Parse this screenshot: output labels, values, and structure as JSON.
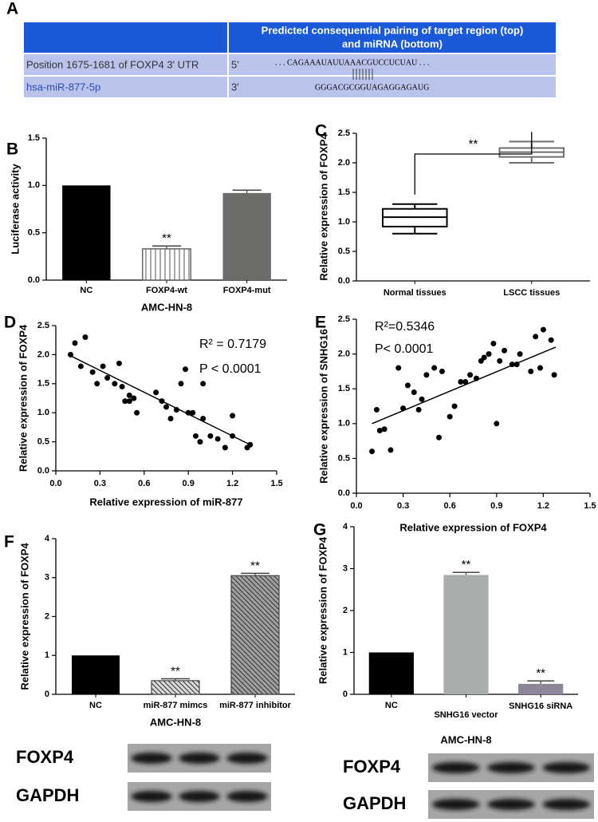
{
  "panel_a": {
    "panel": "A",
    "header": [
      "Predicted consequential pairing of target region (top)",
      "and miRNA (bottom)"
    ],
    "rows": [
      [
        "Position 1675-1681 of FOXP4 3' UTR",
        "5'",
        ". . . CAGAAAUAUUAAACGUCCUCUAU . . ."
      ],
      [
        "hsa-miR-877-5p",
        "3'",
        "GGGACGCGGUAGAGGAGAUG"
      ]
    ]
  },
  "chart_data": [
    {
      "type": "bar",
      "panel": "B",
      "categories": [
        "NC",
        "FOXP4-wt",
        "FOXP4-mut"
      ],
      "values": [
        1.0,
        0.33,
        0.92
      ],
      "errors": [
        null,
        0.03,
        0.03
      ],
      "colors": [
        "#000000",
        "#ffffff",
        "#6b6d68"
      ],
      "hatch": [
        null,
        "vertical",
        null
      ],
      "significance": [
        null,
        "**",
        null
      ],
      "ylabel": "Luciferase activity",
      "xlabel": "AMC-HN-8",
      "ylim": [
        0,
        1.5
      ],
      "yticks": [
        {
          "value": 0,
          "label": "0.0"
        },
        0.5,
        {
          "value": 1,
          "label": "1.0"
        },
        1.5
      ]
    },
    {
      "type": "box",
      "panel": "C",
      "categories": [
        "Normal tissues",
        "LSCC tissues"
      ],
      "min": [
        0.8,
        2.0
      ],
      "q1": [
        0.92,
        2.1
      ],
      "median": [
        1.08,
        2.18
      ],
      "q3": [
        1.22,
        2.25
      ],
      "max": [
        1.3,
        2.36
      ],
      "colors": [
        "#000000",
        "#6e6e6e"
      ],
      "significance": "**",
      "ylabel": "Relative expression of FOXP4",
      "ylim": [
        0,
        2.5
      ],
      "yticks": [
        {
          "value": 0,
          "label": "0.0"
        },
        0.5,
        {
          "value": 1,
          "label": "1.0"
        },
        1.5,
        {
          "value": 2,
          "label": "2.0"
        },
        2.5
      ]
    },
    {
      "type": "scatter",
      "panel": "D",
      "x": [
        0.1,
        0.13,
        0.2,
        0.17,
        0.25,
        0.28,
        0.32,
        0.35,
        0.4,
        0.43,
        0.45,
        0.47,
        0.5,
        0.5,
        0.55,
        0.53,
        0.68,
        0.72,
        0.75,
        0.78,
        0.82,
        0.85,
        0.88,
        0.9,
        0.93,
        0.95,
        0.98,
        1.0,
        1.0,
        1.05,
        1.1,
        1.15,
        1.2,
        1.2,
        1.3,
        1.32
      ],
      "values": [
        2.0,
        2.2,
        2.3,
        1.8,
        1.7,
        1.5,
        1.8,
        1.6,
        1.5,
        1.85,
        1.45,
        1.2,
        1.3,
        1.2,
        1.0,
        1.25,
        1.35,
        1.2,
        1.1,
        0.9,
        1.05,
        1.5,
        1.75,
        1.0,
        1.0,
        0.6,
        0.5,
        1.5,
        0.9,
        0.6,
        0.55,
        0.4,
        0.95,
        0.6,
        0.4,
        0.45
      ],
      "fit": {
        "x": [
          0.1,
          1.32
        ],
        "values": [
          1.98,
          0.45
        ]
      },
      "annotations": [
        "R² = 0.7179",
        "P < 0.0001"
      ],
      "xlabel": "Relative expression of miR-877",
      "ylabel": "Relative expression of FOXP4",
      "xlim": [
        0,
        1.5
      ],
      "ylim": [
        0,
        2.5
      ],
      "xticks": [
        {
          "value": 0,
          "label": "0.0"
        },
        0.3,
        0.6,
        0.9,
        1.2,
        1.5
      ],
      "yticks": [
        {
          "value": 0,
          "label": "0.0"
        },
        0.5,
        {
          "value": 1,
          "label": "1.0"
        },
        1.5,
        {
          "value": 2,
          "label": "2.0"
        },
        2.5
      ]
    },
    {
      "type": "scatter",
      "panel": "E",
      "x": [
        0.1,
        0.13,
        0.15,
        0.18,
        0.22,
        0.27,
        0.3,
        0.33,
        0.37,
        0.4,
        0.42,
        0.45,
        0.5,
        0.53,
        0.55,
        0.6,
        0.63,
        0.67,
        0.7,
        0.73,
        0.77,
        0.8,
        0.82,
        0.85,
        0.88,
        0.9,
        0.92,
        0.95,
        1.0,
        1.03,
        1.05,
        1.12,
        1.15,
        1.18,
        1.2,
        1.25,
        1.27
      ],
      "values": [
        0.6,
        1.2,
        0.9,
        0.92,
        0.62,
        1.8,
        1.22,
        1.55,
        1.45,
        1.2,
        1.35,
        1.7,
        1.8,
        0.8,
        1.75,
        1.1,
        1.25,
        1.6,
        1.6,
        1.7,
        1.65,
        1.9,
        1.95,
        2.0,
        2.15,
        1.0,
        1.9,
        2.05,
        1.85,
        1.85,
        2.0,
        1.75,
        2.25,
        1.8,
        2.35,
        2.2,
        1.7
      ],
      "fit": {
        "x": [
          0.1,
          1.28
        ],
        "values": [
          1.0,
          2.1
        ]
      },
      "annotations": [
        "R²=0.5346",
        "P< 0.0001"
      ],
      "xlabel": "Relative expression of FOXP4",
      "ylabel": "Relative expression of SNHG16",
      "xlim": [
        0,
        1.5
      ],
      "ylim": [
        0,
        2.5
      ],
      "xticks": [
        {
          "value": 0,
          "label": "0.0"
        },
        0.3,
        0.6,
        0.9,
        1.2,
        1.5
      ],
      "yticks": [
        {
          "value": 0,
          "label": "0.0"
        },
        0.5,
        {
          "value": 1,
          "label": "1.0"
        },
        1.5,
        {
          "value": 2,
          "label": "2.0"
        },
        2.5
      ]
    },
    {
      "type": "bar",
      "panel": "F",
      "categories": [
        "NC",
        "miR-877 mimcs",
        "miR-877 inhibitor"
      ],
      "values": [
        1.0,
        0.35,
        3.05
      ],
      "errors": [
        null,
        0.05,
        0.06
      ],
      "colors": [
        "#000000",
        "#d9d9d9",
        "#a0a0a0"
      ],
      "hatch": [
        null,
        "diagonal",
        "diagonal"
      ],
      "significance": [
        null,
        "**",
        "**"
      ],
      "ylabel": "Relative expression of FOXP4",
      "xlabel": "AMC-HN-8",
      "ylim": [
        0,
        4
      ],
      "yticks": [
        0,
        1,
        2,
        3,
        4
      ],
      "blots": [
        "FOXP4",
        "GAPDH"
      ]
    },
    {
      "type": "bar",
      "panel": "G",
      "categories": [
        "NC",
        "SNHG16 vector",
        "SNHG16 siRNA"
      ],
      "values": [
        1.0,
        2.85,
        0.25
      ],
      "errors": [
        null,
        0.06,
        0.07
      ],
      "colors": [
        "#000000",
        "#a8aeaa",
        "#8c8698"
      ],
      "significance": [
        null,
        "**",
        "**"
      ],
      "ylabel": "Relative expression of FOXP4",
      "xlabel": "AMC-HN-8",
      "ylim": [
        0,
        4
      ],
      "yticks": [
        0,
        1,
        2,
        3,
        4
      ],
      "blots": [
        "FOXP4",
        "GAPDH"
      ]
    }
  ]
}
